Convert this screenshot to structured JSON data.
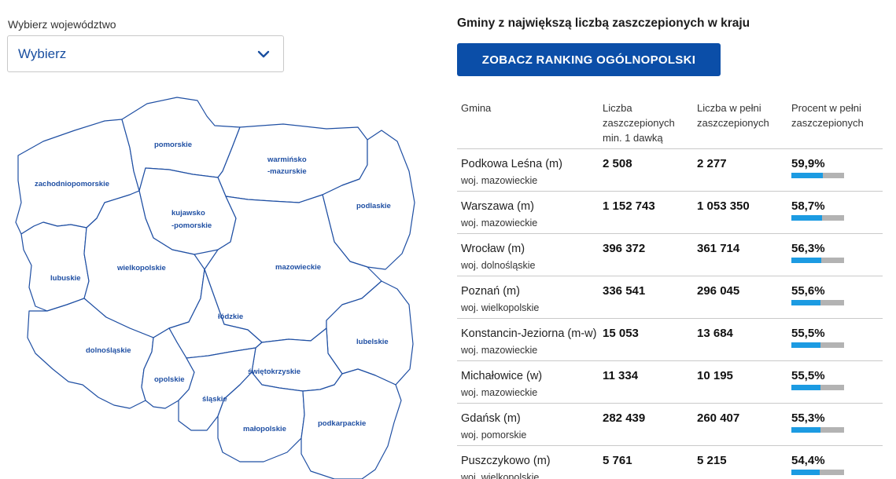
{
  "selector": {
    "label": "Wybierz województwo",
    "value": "Wybierz"
  },
  "map": {
    "regions": [
      "zachodniopomorskie",
      "pomorskie",
      "warmińsko",
      "-mazurskie",
      "podlaskie",
      "kujawsko",
      "-pomorskie",
      "lubuskie",
      "wielkopolskie",
      "mazowieckie",
      "łódzkie",
      "lubelskie",
      "dolnośląskie",
      "opolskie",
      "świętokrzyskie",
      "śląskie",
      "małopolskie",
      "podkarpackie"
    ]
  },
  "ranking": {
    "title": "Gminy z największą liczbą zaszczepionych w kraju",
    "button": "ZOBACZ RANKING OGÓLNOPOLSKI",
    "headers": [
      "Gmina",
      "Liczba zaszczepionych min. 1 dawką",
      "Liczba w pełni zaszczepionych",
      "Procent w pełni zaszczepionych"
    ],
    "rows": [
      {
        "gmina": "Podkowa Leśna (m)",
        "woj": "woj. mazowieckie",
        "dose1": "2 508",
        "full": "2 277",
        "pct": "59,9%",
        "pct_value": 59.9
      },
      {
        "gmina": "Warszawa (m)",
        "woj": "woj. mazowieckie",
        "dose1": "1 152 743",
        "full": "1 053 350",
        "pct": "58,7%",
        "pct_value": 58.7
      },
      {
        "gmina": "Wrocław (m)",
        "woj": "woj. dolnośląskie",
        "dose1": "396 372",
        "full": "361 714",
        "pct": "56,3%",
        "pct_value": 56.3
      },
      {
        "gmina": "Poznań (m)",
        "woj": "woj. wielkopolskie",
        "dose1": "336 541",
        "full": "296 045",
        "pct": "55,6%",
        "pct_value": 55.6
      },
      {
        "gmina": "Konstancin-Jeziorna (m-w)",
        "woj": "woj. mazowieckie",
        "dose1": "15 053",
        "full": "13 684",
        "pct": "55,5%",
        "pct_value": 55.5
      },
      {
        "gmina": "Michałowice (w)",
        "woj": "woj. mazowieckie",
        "dose1": "11 334",
        "full": "10 195",
        "pct": "55,5%",
        "pct_value": 55.5
      },
      {
        "gmina": "Gdańsk (m)",
        "woj": "woj. pomorskie",
        "dose1": "282 439",
        "full": "260 407",
        "pct": "55,3%",
        "pct_value": 55.3
      },
      {
        "gmina": "Puszczykowo (m)",
        "woj": "woj. wielkopolskie",
        "dose1": "5 761",
        "full": "5 215",
        "pct": "54,4%",
        "pct_value": 54.4
      }
    ]
  },
  "colors": {
    "accent": "#0b4ea8",
    "map_stroke": "#1f4fa3",
    "bar_fill": "#1c9be2",
    "bar_track": "#b3b3b3"
  },
  "icons": {
    "dropdown": "chevron-down-icon"
  }
}
